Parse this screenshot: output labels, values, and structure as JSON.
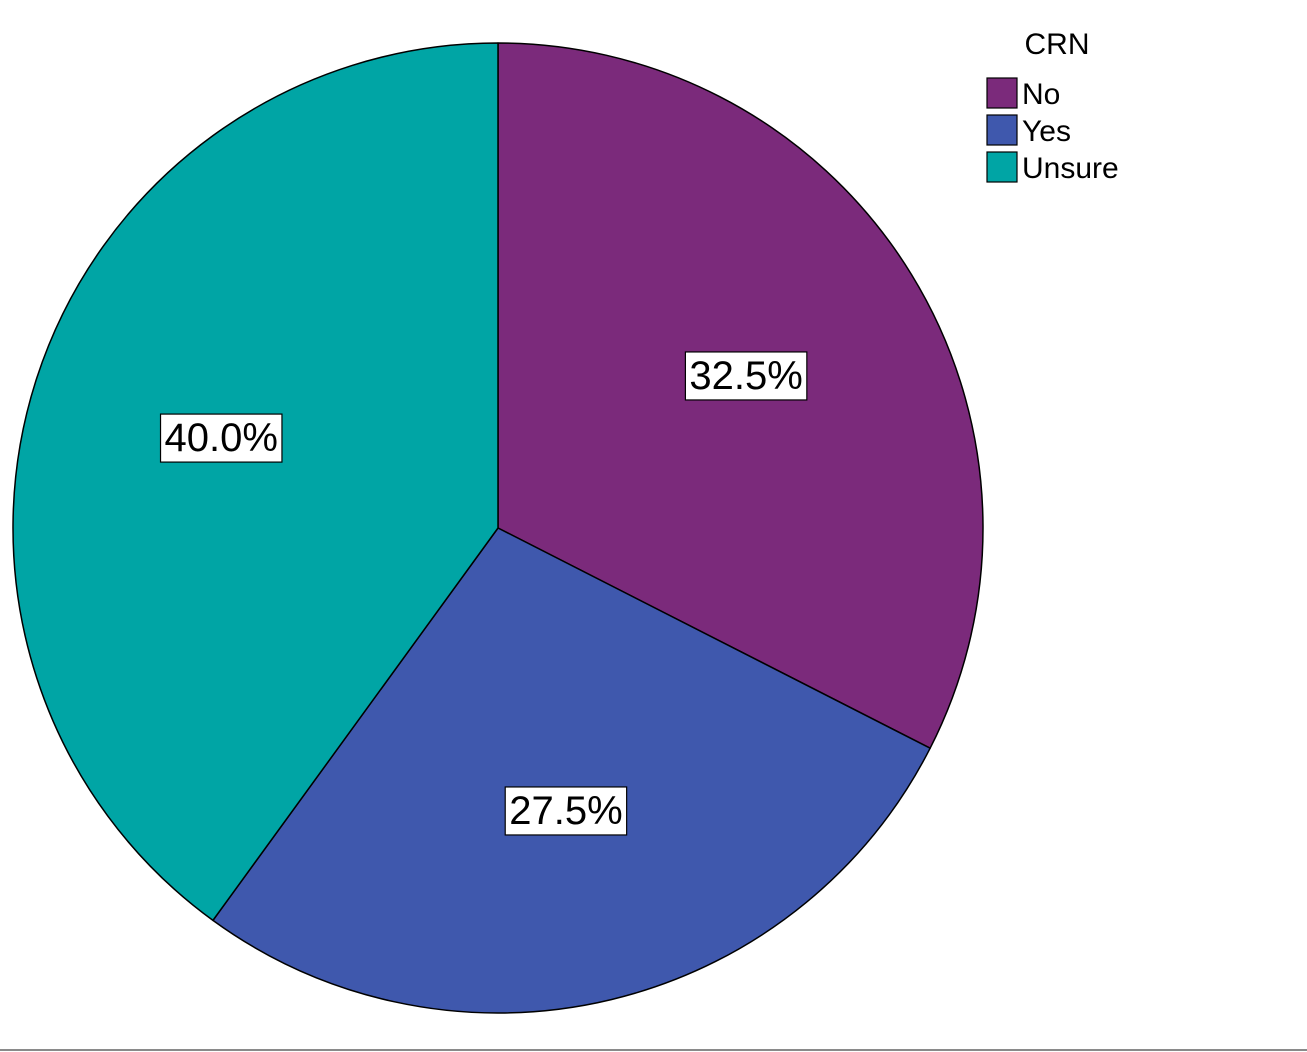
{
  "chart_data": {
    "type": "pie",
    "legend_title": "CRN",
    "legend_position": "top-right",
    "categories": [
      "No",
      "Yes",
      "Unsure"
    ],
    "values": [
      32.5,
      27.5,
      40.0
    ],
    "data_labels": [
      "32.5%",
      "27.5%",
      "40.0%"
    ],
    "colors": [
      "#7b2a7b",
      "#3f58ad",
      "#00a5a5"
    ],
    "start_angle": "12 o'clock",
    "direction": "clockwise"
  }
}
